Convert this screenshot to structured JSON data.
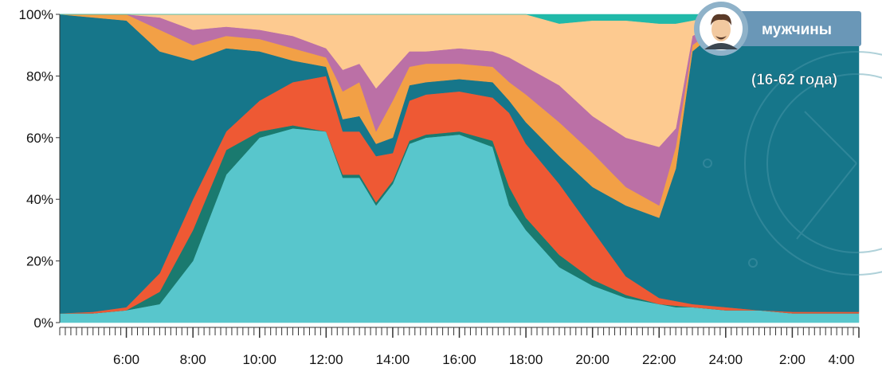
{
  "chart_data": {
    "type": "stacked-area",
    "badge": {
      "title": "мужчины",
      "subtitle": "(16-62 года)"
    },
    "x": [
      4,
      5,
      6,
      7,
      8,
      9,
      10,
      11,
      12,
      12.5,
      13,
      13.5,
      14,
      14.5,
      15,
      16,
      17,
      17.5,
      18,
      19,
      20,
      21,
      22,
      22.5,
      23,
      24,
      25,
      26,
      27,
      28
    ],
    "series": [
      {
        "color": "#58c6cc",
        "values": [
          3,
          3,
          4,
          6,
          20,
          48,
          60,
          63,
          62,
          47,
          47,
          38,
          45,
          58,
          60,
          61,
          57,
          38,
          30,
          18,
          12,
          8,
          6,
          5,
          5,
          4,
          4,
          3,
          3,
          3
        ]
      },
      {
        "color": "#1a7a6f",
        "values": [
          0,
          0,
          0,
          4,
          10,
          8,
          2,
          1,
          0,
          1,
          1,
          1,
          1,
          1,
          1,
          1,
          2,
          6,
          4,
          4,
          2,
          1,
          0,
          0.5,
          0,
          0,
          0,
          0,
          0,
          0
        ]
      },
      {
        "color": "#ee5934",
        "values": [
          0,
          0.5,
          1,
          6,
          10,
          6,
          10,
          14,
          18,
          14,
          14,
          15,
          9,
          13,
          13,
          13,
          14,
          24,
          24,
          23,
          16,
          6,
          2,
          1.5,
          1,
          1,
          0,
          0.5,
          0.5,
          0.5
        ]
      },
      {
        "color": "#16768a",
        "values": [
          97,
          95.5,
          93,
          72,
          45,
          27,
          16,
          7,
          3,
          4,
          5,
          4,
          5,
          5,
          4,
          4,
          5,
          4,
          7,
          9,
          14,
          23,
          26,
          43,
          82,
          92,
          94,
          94.5,
          95.5,
          96.5
        ]
      },
      {
        "color": "#f2a046",
        "values": [
          0,
          1,
          2,
          7,
          5,
          4,
          4,
          4,
          3,
          9,
          11,
          4,
          12,
          6,
          6,
          5,
          5,
          6,
          9,
          11,
          11,
          6,
          4,
          7,
          2,
          1,
          1,
          1,
          1,
          0
        ]
      },
      {
        "color": "#bb70a6",
        "values": [
          0,
          0,
          0,
          4,
          5,
          3,
          3,
          4,
          3,
          7,
          6,
          14,
          10,
          5,
          4,
          5,
          5,
          8,
          9,
          12,
          12,
          16,
          19,
          6,
          3,
          1,
          1,
          1,
          0,
          0
        ]
      },
      {
        "color": "#fdca90",
        "values": [
          0,
          0,
          0,
          1,
          5,
          4,
          5,
          7,
          11,
          18,
          16,
          24,
          18,
          12,
          12,
          11,
          12,
          14,
          17,
          20,
          31,
          38,
          40,
          34,
          5,
          1,
          0,
          0,
          0,
          0
        ]
      },
      {
        "color": "#20b9a9",
        "values": [
          0,
          0,
          0,
          0,
          0,
          0,
          0,
          0,
          0,
          0,
          0,
          0,
          0,
          0,
          0,
          0,
          0,
          0,
          0,
          3,
          2,
          2,
          3,
          3,
          2,
          0,
          0,
          0,
          0,
          0
        ]
      }
    ],
    "xlim": [
      4,
      28
    ],
    "xticks": [
      {
        "value": 6,
        "label": "6:00"
      },
      {
        "value": 8,
        "label": "8:00"
      },
      {
        "value": 10,
        "label": "10:00"
      },
      {
        "value": 12,
        "label": "12:00"
      },
      {
        "value": 14,
        "label": "14:00"
      },
      {
        "value": 16,
        "label": "16:00"
      },
      {
        "value": 18,
        "label": "18:00"
      },
      {
        "value": 20,
        "label": "20:00"
      },
      {
        "value": 22,
        "label": "22:00"
      },
      {
        "value": 24,
        "label": "24:00"
      },
      {
        "value": 26,
        "label": "2:00"
      },
      {
        "value": 28,
        "label": "4:00"
      }
    ],
    "ylim": [
      0,
      100
    ],
    "yticks": [
      {
        "value": 0,
        "label": "0%"
      },
      {
        "value": 20,
        "label": "20%"
      },
      {
        "value": 40,
        "label": "40%"
      },
      {
        "value": 60,
        "label": "60%"
      },
      {
        "value": 80,
        "label": "80%"
      },
      {
        "value": 100,
        "label": "100%"
      }
    ]
  }
}
